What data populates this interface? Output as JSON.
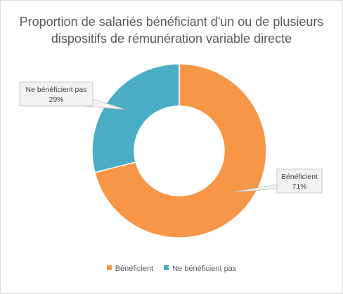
{
  "chart_data": {
    "type": "pie",
    "variant": "doughnut",
    "title_lines": [
      "Proportion de salariés bénéficiant d'un ou de plusieurs",
      "dispositifs de rémunération variable directe"
    ],
    "slices": [
      {
        "name": "Bénéficient",
        "value": 71,
        "label": "71%",
        "color": "#f79646"
      },
      {
        "name": "Ne bénéficient pas",
        "value": 29,
        "label": "29%",
        "color": "#4bacc6"
      }
    ],
    "legend_position": "bottom",
    "grid": false
  }
}
